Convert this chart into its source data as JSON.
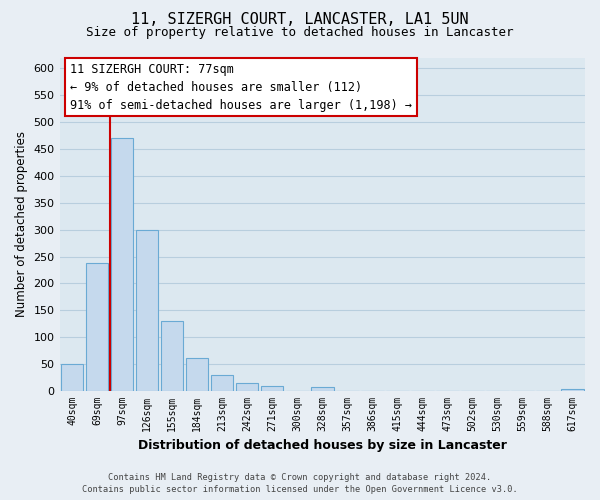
{
  "title": "11, SIZERGH COURT, LANCASTER, LA1 5UN",
  "subtitle": "Size of property relative to detached houses in Lancaster",
  "xlabel": "Distribution of detached houses by size in Lancaster",
  "ylabel": "Number of detached properties",
  "bar_labels": [
    "40sqm",
    "69sqm",
    "97sqm",
    "126sqm",
    "155sqm",
    "184sqm",
    "213sqm",
    "242sqm",
    "271sqm",
    "300sqm",
    "328sqm",
    "357sqm",
    "386sqm",
    "415sqm",
    "444sqm",
    "473sqm",
    "502sqm",
    "530sqm",
    "559sqm",
    "588sqm",
    "617sqm"
  ],
  "bar_values": [
    50,
    238,
    470,
    300,
    130,
    62,
    30,
    15,
    10,
    0,
    8,
    0,
    0,
    0,
    0,
    0,
    0,
    0,
    0,
    0,
    3
  ],
  "bar_color": "#c5d9ed",
  "bar_edge_color": "#6aaad4",
  "vline_x_index": 1.5,
  "vline_color": "#cc0000",
  "ylim": [
    0,
    620
  ],
  "yticks": [
    0,
    50,
    100,
    150,
    200,
    250,
    300,
    350,
    400,
    450,
    500,
    550,
    600
  ],
  "annotation_title": "11 SIZERGH COURT: 77sqm",
  "annotation_line1": "← 9% of detached houses are smaller (112)",
  "annotation_line2": "91% of semi-detached houses are larger (1,198) →",
  "annotation_box_color": "#ffffff",
  "annotation_box_edge": "#cc0000",
  "footer_line1": "Contains HM Land Registry data © Crown copyright and database right 2024.",
  "footer_line2": "Contains public sector information licensed under the Open Government Licence v3.0.",
  "background_color": "#e8eef4",
  "plot_bg_color": "#dce8f0",
  "grid_color": "#b8cede",
  "title_fontsize": 11,
  "subtitle_fontsize": 9,
  "xlabel_fontsize": 9,
  "ylabel_fontsize": 8.5
}
